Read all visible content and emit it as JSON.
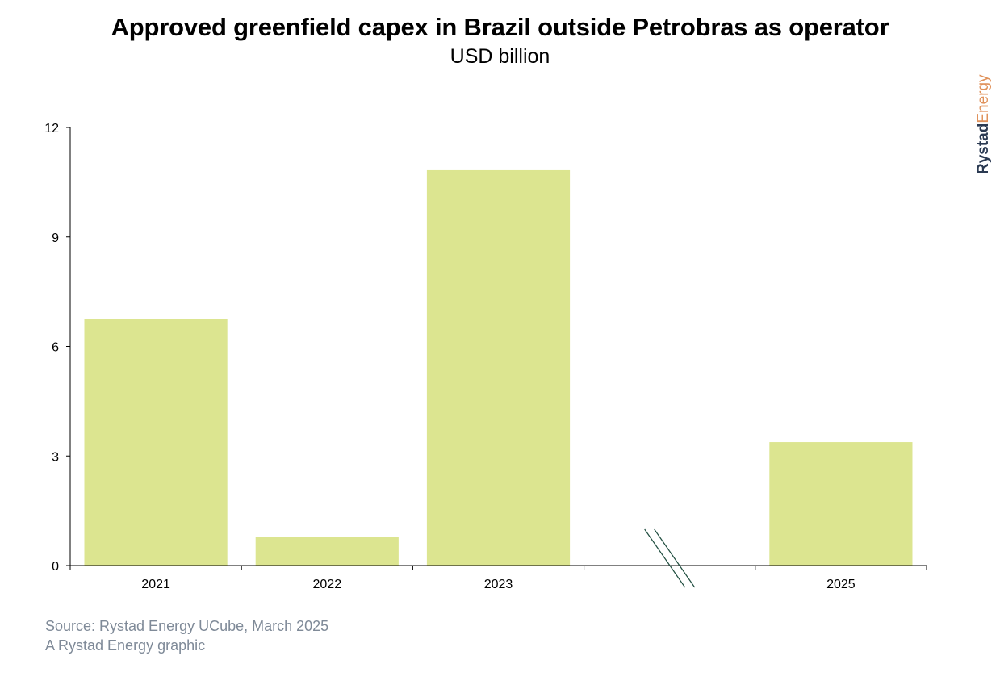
{
  "chart_data": {
    "type": "bar",
    "title": "Approved greenfield capex in Brazil outside Petrobras as operator",
    "subtitle": "USD billion",
    "categories": [
      "2021",
      "2022",
      "2023",
      "",
      "2025"
    ],
    "values": [
      6.75,
      0.78,
      10.83,
      null,
      3.38
    ],
    "ylim": [
      0,
      12
    ],
    "yticks": [
      0,
      3,
      6,
      9,
      12
    ],
    "axis_break_after": "2023",
    "grid": false,
    "bar_color": "#dce590",
    "axis_color": "#000000",
    "break_mark_color": "#1f4d3f"
  },
  "brand": {
    "part1": "Rystad",
    "part2": "Energy"
  },
  "footer": {
    "source": "Source: Rystad Energy UCube, March 2025",
    "credit": "A Rystad Energy graphic"
  }
}
